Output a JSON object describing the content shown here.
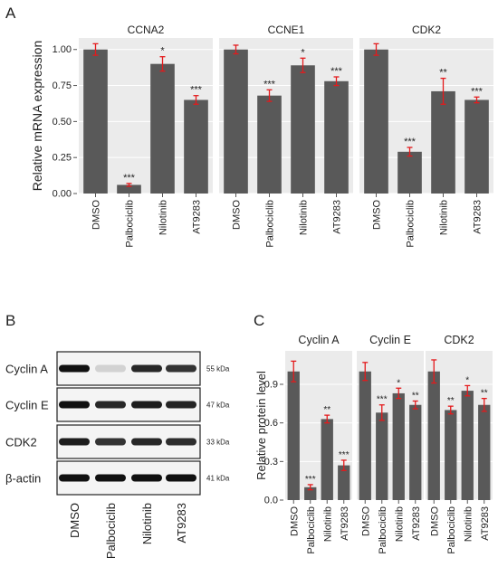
{
  "panel_labels": {
    "a": "A",
    "b": "B",
    "c": "C"
  },
  "colors": {
    "bar": "#595959",
    "panel_bg": "#ebebeb",
    "error": "#e41a1c",
    "blot_band": "#111111"
  },
  "chart_data": [
    {
      "type": "bar",
      "panel": "A",
      "ylabel": "Relative mRNA expression",
      "ylim": [
        0,
        1.08
      ],
      "yticks": [
        0.0,
        0.25,
        0.5,
        0.75,
        1.0
      ],
      "ytick_labels": [
        "0.00",
        "0.25",
        "0.50",
        "0.75",
        "1.00"
      ],
      "categories": [
        "DMSO",
        "Palbociclib",
        "Nilotinib",
        "AT9283"
      ],
      "grid": true,
      "facets": [
        {
          "title": "CCNA2",
          "values": [
            1.0,
            0.06,
            0.9,
            0.65
          ],
          "errors": [
            0.04,
            0.01,
            0.05,
            0.03
          ],
          "signif": [
            "",
            "***",
            "*",
            "***"
          ]
        },
        {
          "title": "CCNE1",
          "values": [
            1.0,
            0.68,
            0.89,
            0.78
          ],
          "errors": [
            0.03,
            0.04,
            0.05,
            0.03
          ],
          "signif": [
            "",
            "***",
            "*",
            "***"
          ]
        },
        {
          "title": "CDK2",
          "values": [
            1.0,
            0.29,
            0.71,
            0.65
          ],
          "errors": [
            0.04,
            0.03,
            0.09,
            0.02
          ],
          "signif": [
            "",
            "***",
            "**",
            "***"
          ]
        }
      ]
    },
    {
      "type": "bar",
      "panel": "C",
      "ylabel": "Relative protein level",
      "ylim": [
        0,
        1.16
      ],
      "yticks": [
        0.0,
        0.3,
        0.6,
        0.9
      ],
      "ytick_labels": [
        "0.0",
        "0.3",
        "0.6",
        "0.9"
      ],
      "categories": [
        "DMSO",
        "Palbociclib",
        "Nilotinib",
        "AT9283"
      ],
      "grid": true,
      "facets": [
        {
          "title": "Cyclin A",
          "values": [
            1.0,
            0.1,
            0.63,
            0.27
          ],
          "errors": [
            0.08,
            0.02,
            0.03,
            0.04
          ],
          "signif": [
            "",
            "***",
            "**",
            "***"
          ]
        },
        {
          "title": "Cyclin E",
          "values": [
            1.0,
            0.68,
            0.83,
            0.74
          ],
          "errors": [
            0.07,
            0.06,
            0.04,
            0.03
          ],
          "signif": [
            "",
            "***",
            "*",
            "**"
          ]
        },
        {
          "title": "CDK2",
          "values": [
            1.0,
            0.7,
            0.85,
            0.74
          ],
          "errors": [
            0.09,
            0.03,
            0.04,
            0.05
          ],
          "signif": [
            "",
            "**",
            "*",
            "**"
          ]
        }
      ]
    }
  ],
  "western_blot": {
    "rows": [
      {
        "protein": "Cyclin A",
        "kda": "55 kDa",
        "intensity": [
          1.0,
          0.15,
          0.9,
          0.85
        ]
      },
      {
        "protein": "Cyclin E",
        "kda": "47 kDa",
        "intensity": [
          1.0,
          0.9,
          0.95,
          0.92
        ]
      },
      {
        "protein": "CDK2",
        "kda": "33 kDa",
        "intensity": [
          0.95,
          0.85,
          0.9,
          0.88
        ]
      },
      {
        "protein": "β-actin",
        "kda": "41 kDa",
        "intensity": [
          1.0,
          1.0,
          1.0,
          1.0
        ]
      }
    ],
    "lanes": [
      "DMSO",
      "Palbociclib",
      "Nilotinib",
      "AT9283"
    ]
  }
}
